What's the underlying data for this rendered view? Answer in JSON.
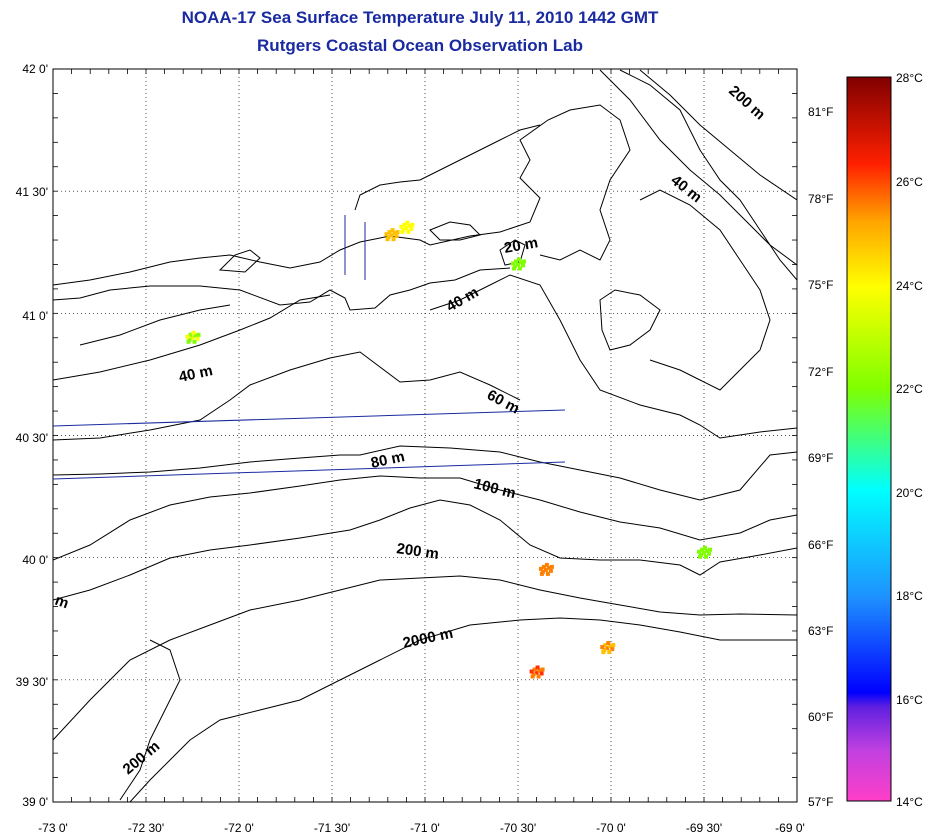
{
  "title_line1": "NOAA-17 Sea Surface Temperature July 11, 2010 1442 GMT",
  "title_line2": "Rutgers Coastal Ocean Observation Lab",
  "map": {
    "lat_ticks": [
      "42 0'",
      "41 30'",
      "41 0'",
      "40 30'",
      "40 0'",
      "39 30'",
      "39 0'"
    ],
    "lon_ticks": [
      "-73 0'",
      "-72 30'",
      "-72 0'",
      "-71 30'",
      "-71 0'",
      "-70 30'",
      "-70 0'",
      "-69 30'",
      "-69 0'"
    ],
    "lat_range": [
      39.0,
      42.0
    ],
    "lon_range": [
      -73.0,
      -69.0
    ],
    "gridlines": true,
    "contours": [
      {
        "label": "200 m",
        "depth_m": 200
      },
      {
        "label": "40 m",
        "depth_m": 40
      },
      {
        "label": "20 m",
        "depth_m": 20
      },
      {
        "label": "40 m",
        "depth_m": 40
      },
      {
        "label": "40 m",
        "depth_m": 40
      },
      {
        "label": "60 m",
        "depth_m": 60
      },
      {
        "label": "80 m",
        "depth_m": 80
      },
      {
        "label": "100 m",
        "depth_m": 100
      },
      {
        "label": "200 m",
        "depth_m": 200
      },
      {
        "label": "m",
        "depth_m": 200
      },
      {
        "label": "2000 m",
        "depth_m": 2000
      },
      {
        "label": "200 m",
        "depth_m": 200
      }
    ],
    "land_color": "#ffffff",
    "coast_color": "#000000",
    "track_color": "#1a2aa0"
  },
  "colorbar": {
    "celsius_ticks": [
      "28°C",
      "26°C",
      "24°C",
      "22°C",
      "20°C",
      "18°C",
      "16°C",
      "14°C"
    ],
    "fahrenheit_ticks": [
      "81°F",
      "78°F",
      "75°F",
      "72°F",
      "69°F",
      "66°F",
      "63°F",
      "60°F",
      "57°F"
    ],
    "range_c": [
      14,
      28
    ],
    "colors": [
      "#ff3ec8",
      "#8a2be2",
      "#0000ff",
      "#1e90ff",
      "#00ffff",
      "#7fff00",
      "#ffff00",
      "#ffa500",
      "#ff0000",
      "#800000"
    ]
  },
  "sst_patches": [
    {
      "lat": 41.2,
      "lon": -70.5,
      "temp_c": 22.0
    },
    {
      "lat": 40.02,
      "lon": -69.5,
      "temp_c": 22.0
    },
    {
      "lat": 39.95,
      "lon": -70.35,
      "temp_c": 25.0
    },
    {
      "lat": 39.63,
      "lon": -70.02,
      "temp_c": 24.5
    },
    {
      "lat": 39.53,
      "lon": -70.4,
      "temp_c": 25.5
    },
    {
      "lat": 41.35,
      "lon": -71.1,
      "temp_c": 23.0
    },
    {
      "lat": 41.32,
      "lon": -71.18,
      "temp_c": 24.0
    },
    {
      "lat": 40.9,
      "lon": -72.25,
      "temp_c": 22.5
    }
  ]
}
